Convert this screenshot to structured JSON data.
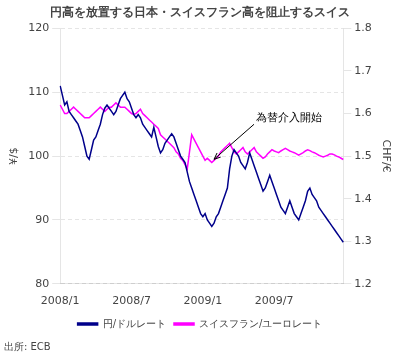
{
  "chart_data": {
    "type": "line",
    "title": "円高を放置する日本・スイスフラン高を阻止するスイス",
    "ylabel": "¥/$",
    "y2label": "CHF/€",
    "source": "出所: ECB",
    "legend": "bottom",
    "grid": true,
    "ylim": [
      80,
      120
    ],
    "yticks": [
      80,
      90,
      100,
      110,
      120
    ],
    "y2lim": [
      1.2,
      1.8
    ],
    "y2ticks": [
      1.2,
      1.3,
      1.4,
      1.5,
      1.6,
      1.7,
      1.8
    ],
    "annotations": [
      {
        "text": "為替介入開始",
        "x": 69,
        "y": 99.5
      }
    ],
    "categories": [
      "2008/1",
      null,
      null,
      null,
      null,
      null,
      null,
      null,
      null,
      null,
      null,
      null,
      null,
      null,
      null,
      null,
      null,
      null,
      null,
      null,
      null,
      null,
      null,
      null,
      null,
      null,
      null,
      null,
      null,
      null,
      null,
      null,
      "2008/7",
      null,
      null,
      null,
      null,
      null,
      null,
      null,
      null,
      null,
      null,
      null,
      null,
      null,
      null,
      null,
      null,
      null,
      null,
      null,
      null,
      null,
      null,
      null,
      null,
      null,
      null,
      null,
      null,
      null,
      null,
      null,
      "2009/1",
      null,
      null,
      null,
      null,
      null,
      null,
      null,
      null,
      null,
      null,
      null,
      null,
      null,
      null,
      null,
      null,
      null,
      null,
      null,
      null,
      null,
      null,
      null,
      null,
      null,
      null,
      null,
      null,
      null,
      null,
      null,
      "2009/7",
      null,
      null,
      null,
      null,
      null,
      null,
      null,
      null,
      null,
      null,
      null,
      null,
      null,
      null,
      null,
      null,
      null,
      null,
      null,
      null,
      null,
      null,
      null,
      null,
      null,
      null,
      null,
      null,
      null,
      null,
      null
    ],
    "series": [
      {
        "name": "円/ドルレート",
        "color": "#00008B",
        "values": [
          111.0,
          109.5,
          108.0,
          108.5,
          107.0,
          106.5,
          106.0,
          105.5,
          105.0,
          104.0,
          103.0,
          101.5,
          100.0,
          99.5,
          101.0,
          102.5,
          103.0,
          104.0,
          105.0,
          106.5,
          107.5,
          108.0,
          107.5,
          107.0,
          106.5,
          107.0,
          108.0,
          109.0,
          109.5,
          110.0,
          109.0,
          108.5,
          107.5,
          106.5,
          106.0,
          106.5,
          106.0,
          105.0,
          104.5,
          104.0,
          103.5,
          103.0,
          104.5,
          103.0,
          101.5,
          100.5,
          101.0,
          102.0,
          102.5,
          103.0,
          103.5,
          103.0,
          102.0,
          101.0,
          100.0,
          99.5,
          99.0,
          97.5,
          96.0,
          95.0,
          94.0,
          93.0,
          92.0,
          91.0,
          90.5,
          91.0,
          90.0,
          89.5,
          89.0,
          89.5,
          90.5,
          91.0,
          92.0,
          93.0,
          94.0,
          95.0,
          98.0,
          100.0,
          101.0,
          100.5,
          100.0,
          99.0,
          98.5,
          98.0,
          99.0,
          100.5,
          99.5,
          98.5,
          97.5,
          96.5,
          95.5,
          94.5,
          95.0,
          96.0,
          97.0,
          96.0,
          95.0,
          94.0,
          93.0,
          92.0,
          91.5,
          91.0,
          92.0,
          93.0,
          92.0,
          91.0,
          90.5,
          90.0,
          91.0,
          92.0,
          93.0,
          94.5,
          95.0,
          94.0,
          93.5,
          93.0,
          92.0,
          91.5,
          91.0,
          90.5,
          90.0,
          89.5,
          89.0,
          88.5,
          88.0,
          87.5,
          87.0,
          86.5
        ]
      },
      {
        "name": "スイスフラン/ユーロレート",
        "color": "#FF00FF",
        "axis": "y2",
        "values": [
          1.62,
          1.61,
          1.6,
          1.6,
          1.605,
          1.61,
          1.615,
          1.61,
          1.605,
          1.6,
          1.595,
          1.59,
          1.59,
          1.59,
          1.595,
          1.6,
          1.605,
          1.61,
          1.615,
          1.61,
          1.605,
          1.61,
          1.615,
          1.615,
          1.62,
          1.625,
          1.62,
          1.615,
          1.615,
          1.615,
          1.61,
          1.605,
          1.6,
          1.598,
          1.6,
          1.605,
          1.61,
          1.6,
          1.595,
          1.59,
          1.585,
          1.58,
          1.575,
          1.57,
          1.565,
          1.55,
          1.545,
          1.54,
          1.535,
          1.53,
          1.525,
          1.52,
          1.51,
          1.505,
          1.495,
          1.49,
          1.48,
          1.47,
          1.51,
          1.55,
          1.54,
          1.53,
          1.52,
          1.51,
          1.5,
          1.49,
          1.495,
          1.49,
          1.485,
          1.49,
          1.495,
          1.5,
          1.51,
          1.515,
          1.52,
          1.525,
          1.53,
          1.52,
          1.51,
          1.505,
          1.51,
          1.515,
          1.52,
          1.51,
          1.505,
          1.51,
          1.515,
          1.52,
          1.51,
          1.505,
          1.5,
          1.495,
          1.498,
          1.505,
          1.51,
          1.515,
          1.512,
          1.51,
          1.508,
          1.512,
          1.515,
          1.518,
          1.515,
          1.512,
          1.51,
          1.508,
          1.505,
          1.502,
          1.505,
          1.508,
          1.512,
          1.515,
          1.513,
          1.51,
          1.508,
          1.505,
          1.502,
          1.5,
          1.498,
          1.5,
          1.502,
          1.505,
          1.505,
          1.503,
          1.5,
          1.498,
          1.495,
          1.492
        ]
      }
    ]
  }
}
